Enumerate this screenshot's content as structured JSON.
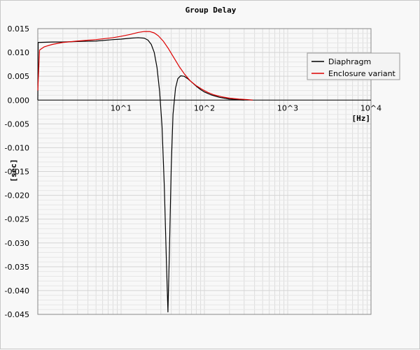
{
  "chart_data": {
    "type": "line",
    "title": "Group Delay",
    "xlabel": "[Hz]",
    "ylabel": "[sec]",
    "x_scale": "log",
    "xlim": [
      1,
      10000
    ],
    "ylim": [
      -0.045,
      0.015
    ],
    "x_ticks": [
      {
        "value": 10,
        "label": "10^1"
      },
      {
        "value": 100,
        "label": "10^2"
      },
      {
        "value": 1000,
        "label": "10^3"
      },
      {
        "value": 10000,
        "label": "10^4"
      }
    ],
    "y_ticks": [
      {
        "value": 0.015,
        "label": "0.015"
      },
      {
        "value": 0.01,
        "label": "0.010"
      },
      {
        "value": 0.005,
        "label": "0.005"
      },
      {
        "value": 0,
        "label": "0.000"
      },
      {
        "value": -0.005,
        "label": "-0.005"
      },
      {
        "value": -0.01,
        "label": "-0.010"
      },
      {
        "value": -0.015,
        "label": "-0.015"
      },
      {
        "value": -0.02,
        "label": "-0.020"
      },
      {
        "value": -0.025,
        "label": "-0.025"
      },
      {
        "value": -0.03,
        "label": "-0.030"
      },
      {
        "value": -0.035,
        "label": "-0.035"
      },
      {
        "value": -0.04,
        "label": "-0.040"
      },
      {
        "value": -0.045,
        "label": "-0.045"
      }
    ],
    "grid": true,
    "legend_position": "top-right",
    "series": [
      {
        "name": "Diaphragm",
        "color": "#000000",
        "points": [
          [
            1.0,
            0.0
          ],
          [
            1.01,
            0.0121
          ],
          [
            1.5,
            0.0122
          ],
          [
            2,
            0.0122
          ],
          [
            3,
            0.0123
          ],
          [
            5,
            0.0124
          ],
          [
            8,
            0.0127
          ],
          [
            10,
            0.0128
          ],
          [
            13,
            0.013
          ],
          [
            16,
            0.0131
          ],
          [
            19,
            0.013
          ],
          [
            21,
            0.0126
          ],
          [
            23,
            0.0117
          ],
          [
            25,
            0.01
          ],
          [
            27,
            0.0068
          ],
          [
            29,
            0.0018
          ],
          [
            31,
            -0.0055
          ],
          [
            33,
            -0.018
          ],
          [
            35,
            -0.034
          ],
          [
            36.5,
            -0.0445
          ],
          [
            38,
            -0.032
          ],
          [
            40,
            -0.014
          ],
          [
            42,
            -0.003
          ],
          [
            45,
            0.0025
          ],
          [
            48,
            0.0045
          ],
          [
            52,
            0.0051
          ],
          [
            57,
            0.005
          ],
          [
            63,
            0.0045
          ],
          [
            70,
            0.0038
          ],
          [
            80,
            0.0029
          ],
          [
            90,
            0.0022
          ],
          [
            100,
            0.0017
          ],
          [
            120,
            0.0011
          ],
          [
            150,
            0.0006
          ],
          [
            200,
            0.0002
          ],
          [
            300,
            0.0
          ]
        ]
      },
      {
        "name": "Enclosure variant",
        "color": "#dd0000",
        "points": [
          [
            1.0,
            0.002
          ],
          [
            1.05,
            0.0105
          ],
          [
            1.2,
            0.0112
          ],
          [
            1.5,
            0.0117
          ],
          [
            2,
            0.0121
          ],
          [
            3,
            0.0124
          ],
          [
            5,
            0.0127
          ],
          [
            8,
            0.0131
          ],
          [
            10,
            0.0134
          ],
          [
            13,
            0.0138
          ],
          [
            16,
            0.0142
          ],
          [
            19,
            0.0144
          ],
          [
            22,
            0.0144
          ],
          [
            25,
            0.0141
          ],
          [
            28,
            0.0135
          ],
          [
            32,
            0.0124
          ],
          [
            37,
            0.0108
          ],
          [
            43,
            0.0089
          ],
          [
            50,
            0.007
          ],
          [
            58,
            0.0054
          ],
          [
            68,
            0.004
          ],
          [
            80,
            0.003
          ],
          [
            95,
            0.0022
          ],
          [
            110,
            0.0016
          ],
          [
            130,
            0.0011
          ],
          [
            160,
            0.0007
          ],
          [
            200,
            0.0004
          ],
          [
            260,
            0.0002
          ],
          [
            330,
            0.0001
          ],
          [
            380,
            0.0
          ]
        ]
      }
    ]
  }
}
